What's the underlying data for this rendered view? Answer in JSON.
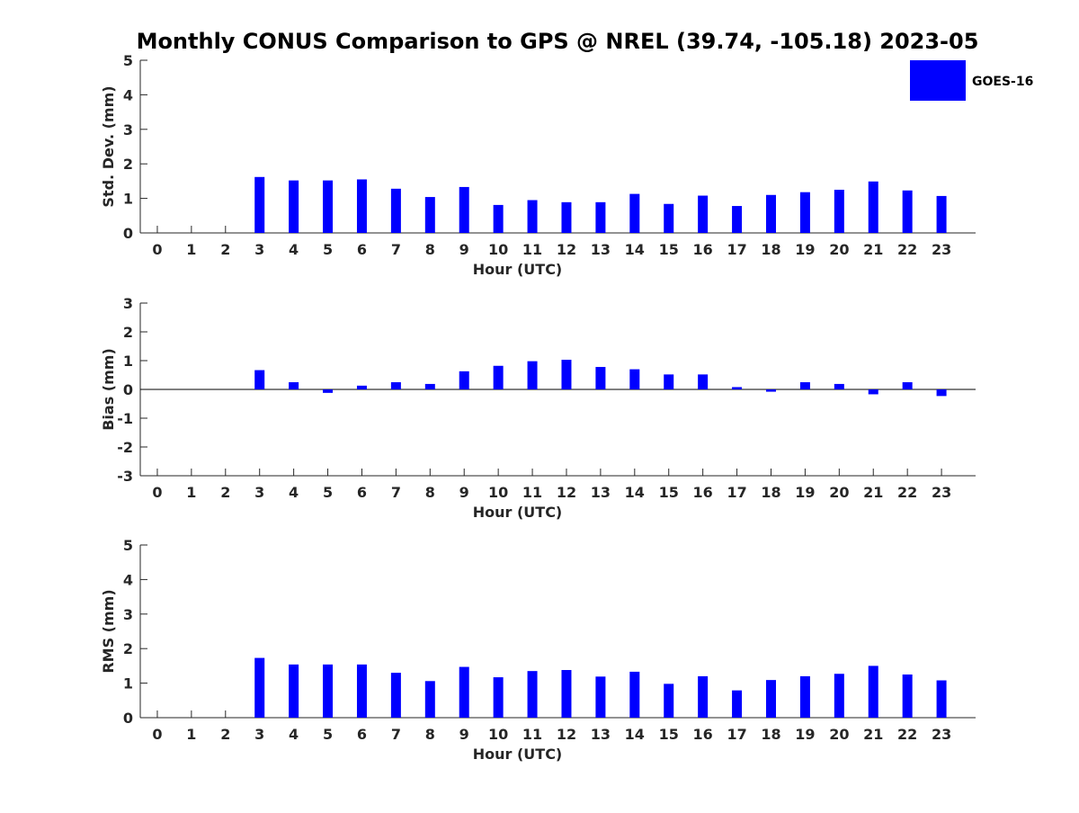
{
  "chart_data": [
    {
      "type": "bar",
      "title": "Monthly CONUS Comparison to GPS @ NREL (39.74, -105.18) 2023-05",
      "xlabel": "Hour (UTC)",
      "ylabel": "Std. Dev. (mm)",
      "ylim": [
        0,
        5
      ],
      "yticks": [
        0,
        1,
        2,
        3,
        4,
        5
      ],
      "categories": [
        "0",
        "1",
        "2",
        "3",
        "4",
        "5",
        "6",
        "7",
        "8",
        "9",
        "10",
        "11",
        "12",
        "13",
        "14",
        "15",
        "16",
        "17",
        "18",
        "19",
        "20",
        "21",
        "22",
        "23"
      ],
      "legend": {
        "position": "top-right",
        "entries": [
          "GOES-16"
        ]
      },
      "series": [
        {
          "name": "GOES-16",
          "color": "#0000ff",
          "values": [
            null,
            null,
            null,
            1.62,
            1.52,
            1.52,
            1.55,
            1.28,
            1.04,
            1.33,
            0.81,
            0.95,
            0.89,
            0.89,
            1.13,
            0.84,
            1.08,
            0.78,
            1.1,
            1.18,
            1.25,
            1.49,
            1.23,
            1.07
          ]
        }
      ]
    },
    {
      "type": "bar",
      "xlabel": "Hour (UTC)",
      "ylabel": "Bias (mm)",
      "ylim": [
        -3,
        3
      ],
      "yticks": [
        -3,
        -2,
        -1,
        0,
        1,
        2,
        3
      ],
      "categories": [
        "0",
        "1",
        "2",
        "3",
        "4",
        "5",
        "6",
        "7",
        "8",
        "9",
        "10",
        "11",
        "12",
        "13",
        "14",
        "15",
        "16",
        "17",
        "18",
        "19",
        "20",
        "21",
        "22",
        "23"
      ],
      "series": [
        {
          "name": "GOES-16",
          "color": "#0000ff",
          "values": [
            null,
            null,
            null,
            0.67,
            0.25,
            -0.12,
            0.13,
            0.25,
            0.19,
            0.63,
            0.82,
            0.98,
            1.03,
            0.78,
            0.7,
            0.52,
            0.52,
            0.08,
            -0.08,
            0.25,
            0.19,
            -0.17,
            0.25,
            -0.23
          ]
        }
      ]
    },
    {
      "type": "bar",
      "xlabel": "Hour (UTC)",
      "ylabel": "RMS (mm)",
      "ylim": [
        0,
        5
      ],
      "yticks": [
        0,
        1,
        2,
        3,
        4,
        5
      ],
      "categories": [
        "0",
        "1",
        "2",
        "3",
        "4",
        "5",
        "6",
        "7",
        "8",
        "9",
        "10",
        "11",
        "12",
        "13",
        "14",
        "15",
        "16",
        "17",
        "18",
        "19",
        "20",
        "21",
        "22",
        "23"
      ],
      "series": [
        {
          "name": "GOES-16",
          "color": "#0000ff",
          "values": [
            null,
            null,
            null,
            1.73,
            1.54,
            1.54,
            1.54,
            1.3,
            1.06,
            1.47,
            1.17,
            1.35,
            1.38,
            1.19,
            1.33,
            0.98,
            1.2,
            0.79,
            1.09,
            1.2,
            1.27,
            1.5,
            1.25,
            1.08
          ]
        }
      ]
    }
  ]
}
